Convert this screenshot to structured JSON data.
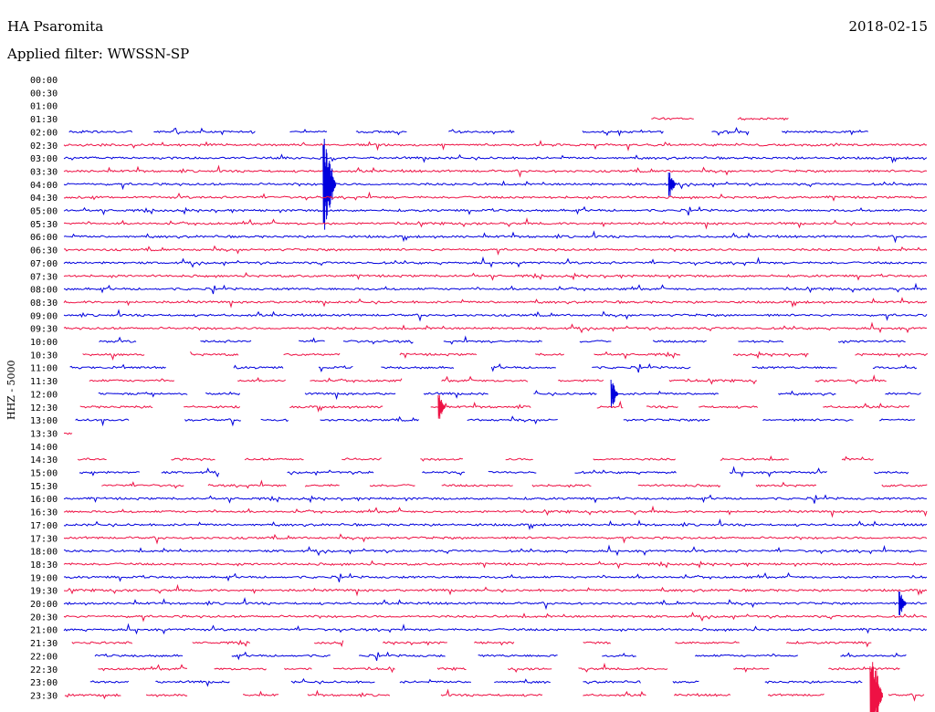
{
  "header": {
    "station": "HA Psaromita",
    "date": "2018-02-15",
    "filter": "Applied filter: WWSSN-SP"
  },
  "channel_label": "HHZ - 5000",
  "colors": {
    "trace_a": "#0000dd",
    "trace_b": "#ee1144"
  },
  "chart_data": {
    "type": "line",
    "title": "HA Psaromita",
    "ylabel": "HHZ - 5000",
    "rows": [
      "00:00",
      "00:30",
      "01:00",
      "01:30",
      "02:00",
      "02:30",
      "03:00",
      "03:30",
      "04:00",
      "04:30",
      "05:00",
      "05:30",
      "06:00",
      "06:30",
      "07:00",
      "07:30",
      "08:00",
      "08:30",
      "09:00",
      "09:30",
      "10:00",
      "10:30",
      "11:00",
      "11:30",
      "12:00",
      "12:30",
      "13:00",
      "13:30",
      "14:00",
      "14:30",
      "15:00",
      "15:30",
      "16:00",
      "16:30",
      "17:00",
      "17:30",
      "18:00",
      "18:30",
      "19:00",
      "19:30",
      "20:00",
      "20:30",
      "21:00",
      "21:30",
      "22:00",
      "22:30",
      "23:00",
      "23:30"
    ],
    "row_minutes": 30,
    "color_cycle": [
      "trace_a",
      "trace_b"
    ],
    "events": [
      {
        "row": "04:00",
        "minute": 9,
        "amplitude": "large"
      },
      {
        "row": "04:00",
        "minute": 21,
        "amplitude": "medium"
      },
      {
        "row": "12:30",
        "minute": 13,
        "amplitude": "medium"
      },
      {
        "row": "12:00",
        "minute": 19,
        "amplitude": "medium"
      },
      {
        "row": "20:00",
        "minute": 29,
        "amplitude": "medium"
      },
      {
        "row": "23:30",
        "minute": 28,
        "amplitude": "large"
      }
    ]
  }
}
